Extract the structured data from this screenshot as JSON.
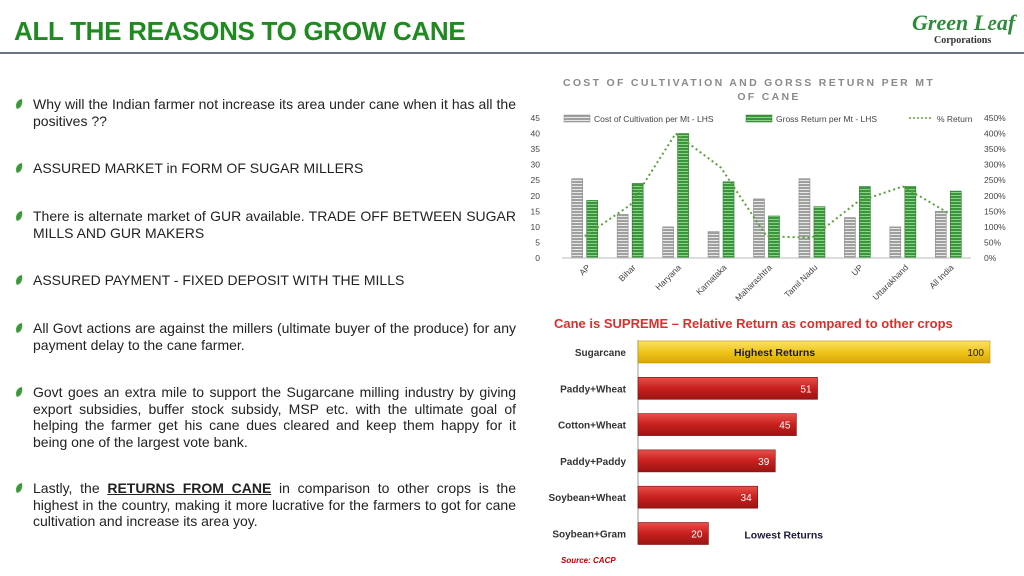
{
  "title": "ALL THE REASONS TO GROW CANE",
  "logo": {
    "name": "Green Leaf",
    "sub": "Corporations"
  },
  "bullets": [
    {
      "text": "Why will the Indian farmer not increase its area under cane when it has all the positives ??"
    },
    {
      "text": "ASSURED MARKET in FORM OF SUGAR MILLERS"
    },
    {
      "text": "There is alternate market of GUR available. TRADE OFF BETWEEN SUGAR MILLS AND GUR MAKERS"
    },
    {
      "text": "ASSURED PAYMENT - FIXED DEPOSIT WITH THE MILLS"
    },
    {
      "text": "All Govt actions are against the millers (ultimate buyer of the produce) for any payment delay to the cane farmer."
    },
    {
      "text": "Govt goes an extra mile to support the Sugarcane milling industry by giving export subsidies, buffer stock subsidy, MSP etc. with the ultimate goal of helping the farmer get his cane dues cleared and keep them happy for it being one of the largest vote bank."
    },
    {
      "text_pre": "Lastly, the ",
      "text_emph": "RETURNS FROM CANE",
      "text_post": " in comparison to other crops is the highest in the country, making it more lucrative for the farmers to got for cane cultivation and increase its area yoy."
    }
  ],
  "cost_chart": {
    "title_line1": "COST OF CULTIVATION AND GORSS RETURN PER MT",
    "title_line2": "OF CANE",
    "legend": [
      "Cost of Cultivation per Mt - LHS",
      "Gross Return per Mt - LHS",
      "% Return"
    ],
    "left_ticks": [
      "45",
      "40",
      "35",
      "30",
      "25",
      "20",
      "15",
      "10",
      "5",
      "0"
    ],
    "right_ticks": [
      "450%",
      "400%",
      "350%",
      "300%",
      "250%",
      "200%",
      "150%",
      "100%",
      "50%",
      "0%"
    ]
  },
  "returns_chart": {
    "title": "Cane is SUPREME – Relative Return as compared to other crops",
    "highest_label": "Highest Returns",
    "lowest_label": "Lowest Returns",
    "source": "Source: CACP"
  },
  "colors": {
    "title": "#1f8a1f",
    "bar_gray": "#a8aaa8",
    "bar_green": "#3d9b3d",
    "line": "#5aa33a",
    "bar_red": "#c8201e",
    "bar_gold": "#f0c419"
  },
  "chart_data": [
    {
      "type": "bar",
      "title": "COST OF CULTIVATION AND GORSS RETURN PER MT OF CANE",
      "categories": [
        "AP",
        "Bihar",
        "Haryana",
        "Karnataka",
        "Maharashtra",
        "Tamil Nadu",
        "UP",
        "Uttarakhand",
        "All India"
      ],
      "series": [
        {
          "name": "Cost of Cultivation per Mt - LHS",
          "values": [
            25.5,
            14,
            10,
            8.5,
            19,
            25.5,
            13,
            10,
            15
          ]
        },
        {
          "name": "Gross Return per Mt - LHS",
          "values": [
            18.5,
            24,
            40,
            24.5,
            13.5,
            16.5,
            23,
            23,
            21.5
          ]
        },
        {
          "name": "% Return",
          "axis": "right",
          "type": "line",
          "values": [
            70,
            170,
            400,
            290,
            70,
            65,
            180,
            230,
            145
          ]
        }
      ],
      "ylim": [
        0,
        45
      ],
      "y2lim": [
        0,
        4.5
      ]
    },
    {
      "type": "bar",
      "orientation": "horizontal",
      "title": "Cane is SUPREME – Relative Return as compared to other crops",
      "categories": [
        "Sugarcane",
        "Paddy+Wheat",
        "Cotton+Wheat",
        "Paddy+Paddy",
        "Soybean+Wheat",
        "Soybean+Gram"
      ],
      "values": [
        100,
        51,
        45,
        39,
        34,
        20
      ],
      "xlim": [
        0,
        100
      ]
    }
  ]
}
